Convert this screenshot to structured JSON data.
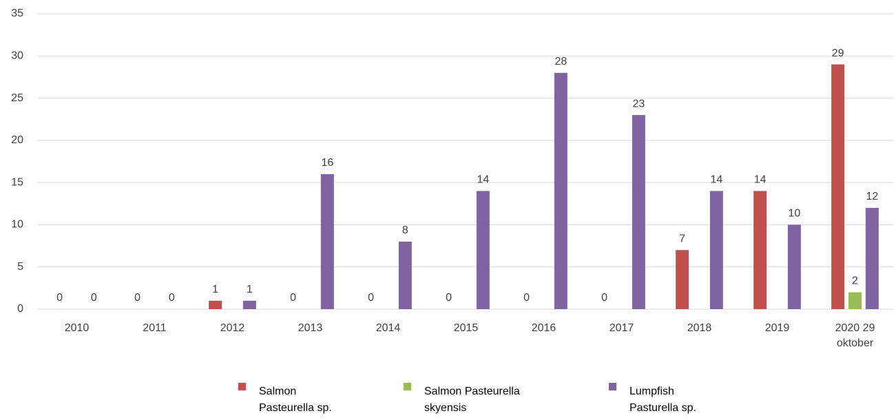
{
  "chart_data": {
    "type": "bar",
    "categories": [
      "2010",
      "2011",
      "2012",
      "2013",
      "2014",
      "2015",
      "2016",
      "2017",
      "2018",
      "2019",
      "2020 29 oktober"
    ],
    "series": [
      {
        "name": "Salmon Pasteurella sp.",
        "color": "#c0504d",
        "values": [
          0,
          0,
          1,
          0,
          0,
          0,
          0,
          0,
          7,
          14,
          29
        ]
      },
      {
        "name": "Salmon Pasteurella skyensis",
        "color": "#9bbb59",
        "values": [
          null,
          null,
          null,
          null,
          null,
          null,
          null,
          null,
          null,
          null,
          2
        ]
      },
      {
        "name": "Lumpfish Pasturella sp.",
        "color": "#8064a2",
        "values": [
          0,
          0,
          1,
          16,
          8,
          14,
          28,
          23,
          14,
          10,
          12
        ]
      }
    ],
    "ylim": [
      0,
      35
    ],
    "yticks": [
      0,
      5,
      10,
      15,
      20,
      25,
      30,
      35
    ],
    "grid": true,
    "legend": "bottom"
  }
}
